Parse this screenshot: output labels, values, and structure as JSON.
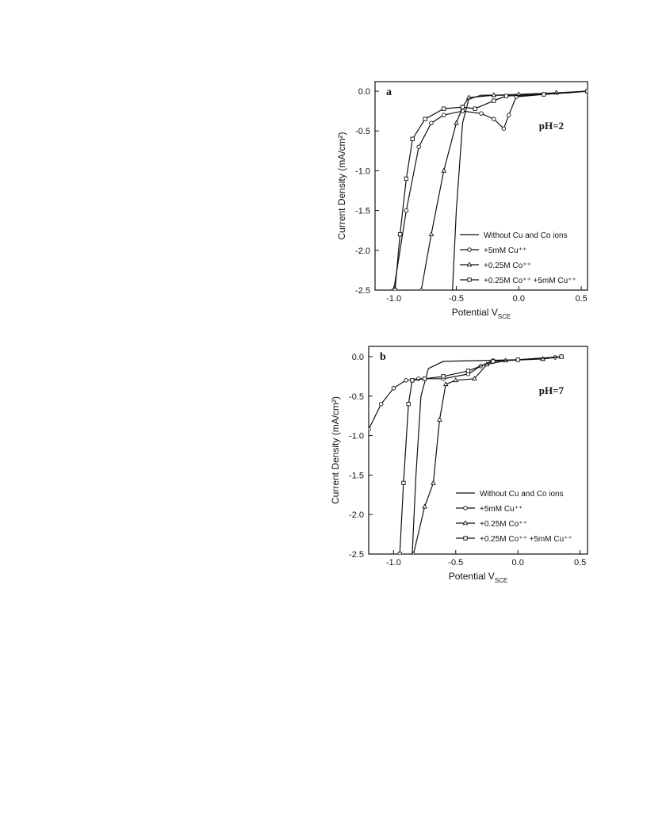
{
  "chart_data": [
    {
      "type": "line",
      "panel_label": "a",
      "annotation": "pH=2",
      "y_label": "Current Density (mA/cm²)",
      "x_label": "Potential V",
      "x_label_sub": "SCE",
      "xlim": [
        -1.15,
        0.55
      ],
      "ylim": [
        -2.5,
        0.12
      ],
      "xticks": [
        {
          "value": -1.0,
          "label": "-1.0"
        },
        -0.5,
        {
          "value": 0.0,
          "label": "0.0"
        },
        0.5
      ],
      "yticks": [
        {
          "value": 0.0,
          "label": "0.0"
        },
        -0.5,
        {
          "value": -1.0,
          "label": "-1.0"
        },
        -1.5,
        {
          "value": -2.0,
          "label": "-2.0"
        },
        -2.5
      ],
      "legend": "lower right",
      "series": [
        {
          "name": "Without Cu and Co ions",
          "color": "#111111",
          "marker": "none",
          "x": [
            -0.53,
            -0.5,
            -0.45,
            -0.4,
            -0.3,
            -0.1,
            0,
            0.2,
            0.4,
            0.55
          ],
          "values": [
            -2.5,
            -1.5,
            -0.4,
            -0.1,
            -0.05,
            -0.05,
            -0.04,
            -0.03,
            -0.02,
            0
          ]
        },
        {
          "name": "+5mM Cu⁺⁺",
          "color": "#111111",
          "marker": "circle",
          "x": [
            -1.0,
            -0.9,
            -0.8,
            -0.7,
            -0.6,
            -0.45,
            -0.3,
            -0.2,
            -0.12,
            -0.08,
            -0.02,
            0.2,
            0.55
          ],
          "values": [
            -2.5,
            -1.5,
            -0.7,
            -0.4,
            -0.3,
            -0.25,
            -0.28,
            -0.35,
            -0.47,
            -0.3,
            -0.07,
            -0.04,
            0
          ]
        },
        {
          "name": "+0.25M Co⁺⁺",
          "color": "#111111",
          "marker": "triangle",
          "x": [
            -0.78,
            -0.7,
            -0.6,
            -0.5,
            -0.45,
            -0.4,
            -0.2,
            0,
            0.3,
            0.55
          ],
          "values": [
            -2.5,
            -1.8,
            -1.0,
            -0.4,
            -0.2,
            -0.08,
            -0.05,
            -0.04,
            -0.02,
            0
          ]
        },
        {
          "name": "+0.25M Co⁺⁺ +5mM Cu⁺⁺",
          "color": "#111111",
          "marker": "square",
          "x": [
            -0.99,
            -0.95,
            -0.9,
            -0.85,
            -0.75,
            -0.6,
            -0.45,
            -0.35,
            -0.2,
            -0.1,
            0.2,
            0.55
          ],
          "values": [
            -2.5,
            -1.8,
            -1.1,
            -0.6,
            -0.35,
            -0.22,
            -0.2,
            -0.22,
            -0.12,
            -0.06,
            -0.04,
            0
          ]
        }
      ]
    },
    {
      "type": "line",
      "panel_label": "b",
      "annotation": "pH=7",
      "y_label": "Current Density (mA/cm²)",
      "x_label": "Potential V",
      "x_label_sub": "SCE",
      "xlim": [
        -1.2,
        0.56
      ],
      "ylim": [
        -2.5,
        0.13
      ],
      "xticks": [
        {
          "value": -1.0,
          "label": "-1.0"
        },
        -0.5,
        {
          "value": 0.0,
          "label": "0.0"
        },
        0.5
      ],
      "yticks": [
        {
          "value": 0.0,
          "label": "0.0"
        },
        -0.5,
        {
          "value": -1.0,
          "label": "-1.0"
        },
        -1.5,
        {
          "value": -2.0,
          "label": "-2.0"
        },
        -2.5
      ],
      "legend": "lower right",
      "series": [
        {
          "name": "Without Cu and Co ions",
          "color": "#111111",
          "marker": "none",
          "x": [
            -0.85,
            -0.82,
            -0.78,
            -0.72,
            -0.6,
            -0.3,
            0,
            0.3
          ],
          "values": [
            -2.5,
            -1.5,
            -0.5,
            -0.15,
            -0.06,
            -0.05,
            -0.04,
            -0.01
          ]
        },
        {
          "name": "+5mM Cu⁺⁺",
          "color": "#111111",
          "marker": "circle",
          "x": [
            -1.2,
            -1.1,
            -1.0,
            -0.9,
            -0.8,
            -0.6,
            -0.4,
            -0.3,
            -0.2,
            0,
            0.3
          ],
          "values": [
            -0.92,
            -0.6,
            -0.4,
            -0.3,
            -0.28,
            -0.28,
            -0.22,
            -0.12,
            -0.05,
            -0.04,
            -0.01
          ]
        },
        {
          "name": "+0.25M Co⁺⁺",
          "color": "#111111",
          "marker": "triangle",
          "x": [
            -0.84,
            -0.75,
            -0.68,
            -0.63,
            -0.58,
            -0.5,
            -0.35,
            -0.25,
            -0.1,
            0.2,
            0.35
          ],
          "values": [
            -2.5,
            -1.9,
            -1.6,
            -0.8,
            -0.35,
            -0.3,
            -0.28,
            -0.1,
            -0.05,
            -0.03,
            0
          ]
        },
        {
          "name": "+0.25M Co⁺⁺ +5mM Cu⁺⁺",
          "color": "#111111",
          "marker": "square",
          "x": [
            -0.95,
            -0.92,
            -0.88,
            -0.85,
            -0.75,
            -0.6,
            -0.4,
            -0.2,
            0,
            0.35
          ],
          "values": [
            -2.5,
            -1.6,
            -0.6,
            -0.3,
            -0.28,
            -0.25,
            -0.18,
            -0.06,
            -0.04,
            0
          ]
        }
      ]
    }
  ]
}
